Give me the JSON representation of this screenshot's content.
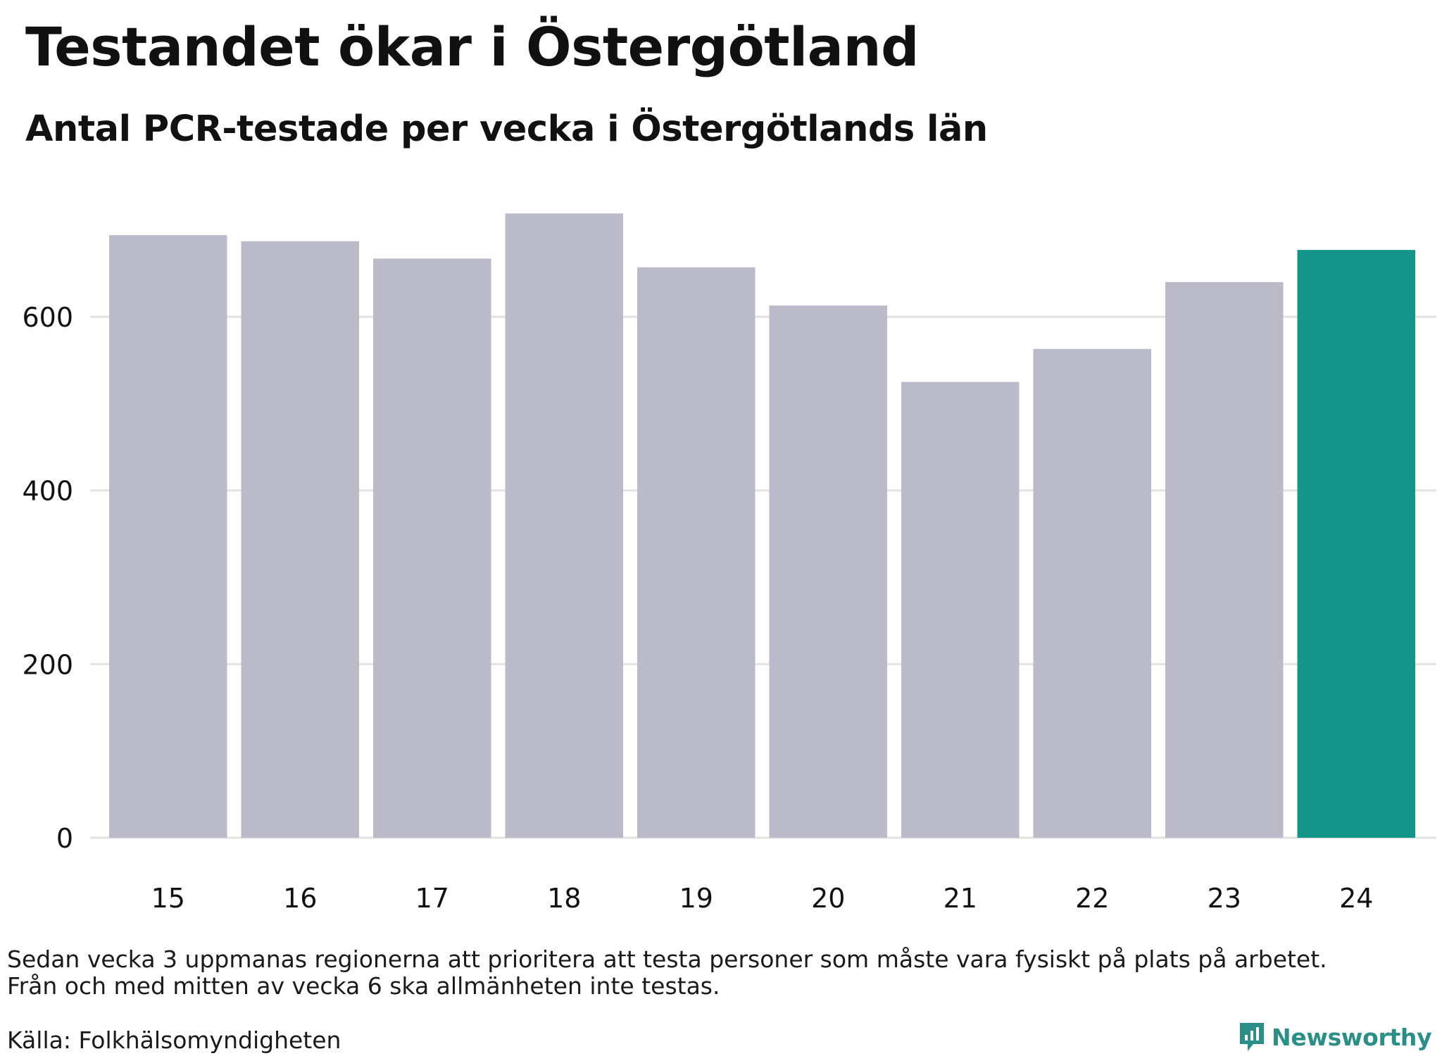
{
  "title": "Testandet ökar i Östergötland",
  "subtitle": "Antal PCR-testade per vecka i Östergötlands län",
  "notes": [
    "Sedan vecka 3 uppmanas regionerna att prioritera att testa personer som måste vara fysiskt på plats på arbetet.",
    "Från och med mitten av vecka 6 ska allmänheten inte testas."
  ],
  "source": "Källa: Folkhälsomyndigheten",
  "brand": {
    "name": "Newsworthy",
    "icon": "newsworthy-logo-icon",
    "color": "#2a8f87"
  },
  "chart_data": {
    "type": "bar",
    "categories": [
      "15",
      "16",
      "17",
      "18",
      "19",
      "20",
      "21",
      "22",
      "23",
      "24"
    ],
    "values": [
      694,
      687,
      667,
      719,
      657,
      613,
      525,
      563,
      640,
      677
    ],
    "highlight_index": 9,
    "colors": {
      "bar": "#bbbac8",
      "highlight": "#14958a",
      "grid": "#e2e2e2"
    },
    "yticks": [
      0,
      200,
      400,
      600
    ],
    "ylim": [
      0,
      760
    ],
    "grid": "horizontal"
  }
}
